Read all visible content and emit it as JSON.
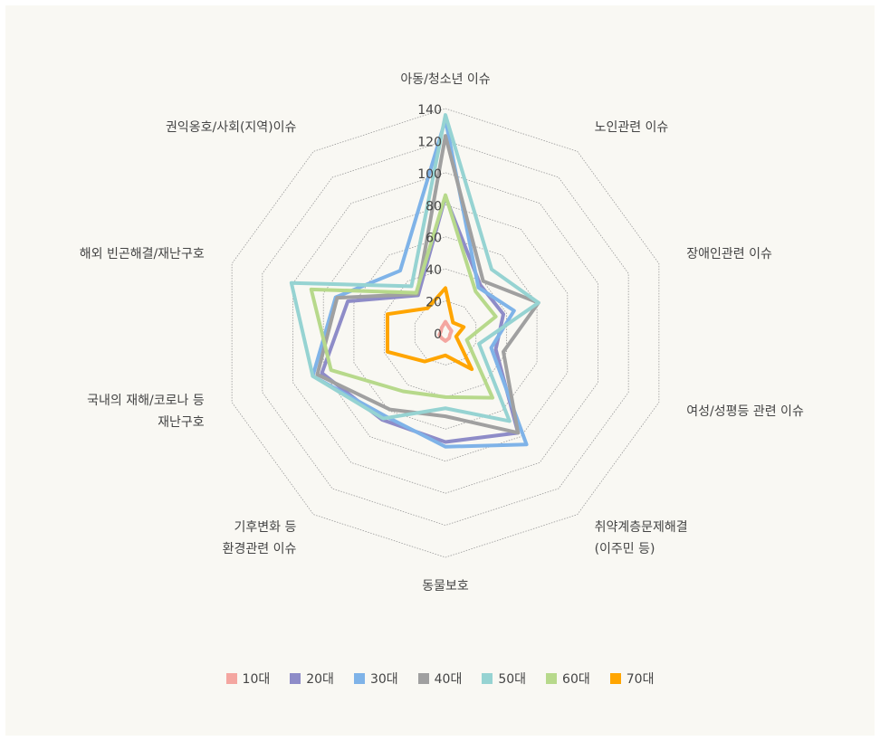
{
  "chart_data": {
    "type": "radar",
    "categories": [
      "아동/청소년 이슈",
      "노인관련 이슈",
      "장애인관련 이슈",
      "여성/성평등 관련 이슈",
      "취약계층문제해결\n(이주민 등)",
      "동물보호",
      "기후변화 등\n환경관련 이슈",
      "국내의 재해/코로나 등\n재난구호",
      "해외 빈곤해결/재난구호",
      "권익옹호/사회(지역)이슈"
    ],
    "ylim": [
      0,
      140
    ],
    "yticks": [
      0,
      20,
      40,
      60,
      80,
      100,
      120,
      140
    ],
    "legend": "bottom",
    "series": [
      {
        "name": "10대",
        "color": "#f4a6a0",
        "values": [
          7,
          4,
          4,
          3,
          4,
          5,
          4,
          4,
          3,
          4
        ]
      },
      {
        "name": "20대",
        "color": "#8e8cc8",
        "values": [
          85,
          37,
          38,
          33,
          77,
          68,
          67,
          81,
          64,
          29
        ]
      },
      {
        "name": "30대",
        "color": "#7fb3e8",
        "values": [
          133,
          35,
          45,
          30,
          86,
          71,
          64,
          87,
          72,
          48
        ]
      },
      {
        "name": "40대",
        "color": "#a0a0a0",
        "values": [
          123,
          40,
          61,
          38,
          77,
          52,
          59,
          84,
          71,
          30
        ]
      },
      {
        "name": "50대",
        "color": "#96d3d2",
        "values": [
          136,
          49,
          61,
          22,
          68,
          47,
          66,
          87,
          101,
          36
        ]
      },
      {
        "name": "60대",
        "color": "#b7d98b",
        "values": [
          86,
          32,
          33,
          14,
          50,
          40,
          45,
          75,
          88,
          31
        ]
      },
      {
        "name": "70대",
        "color": "#ffa500",
        "values": [
          28,
          8,
          12,
          7,
          28,
          14,
          22,
          38,
          38,
          19
        ]
      }
    ]
  }
}
